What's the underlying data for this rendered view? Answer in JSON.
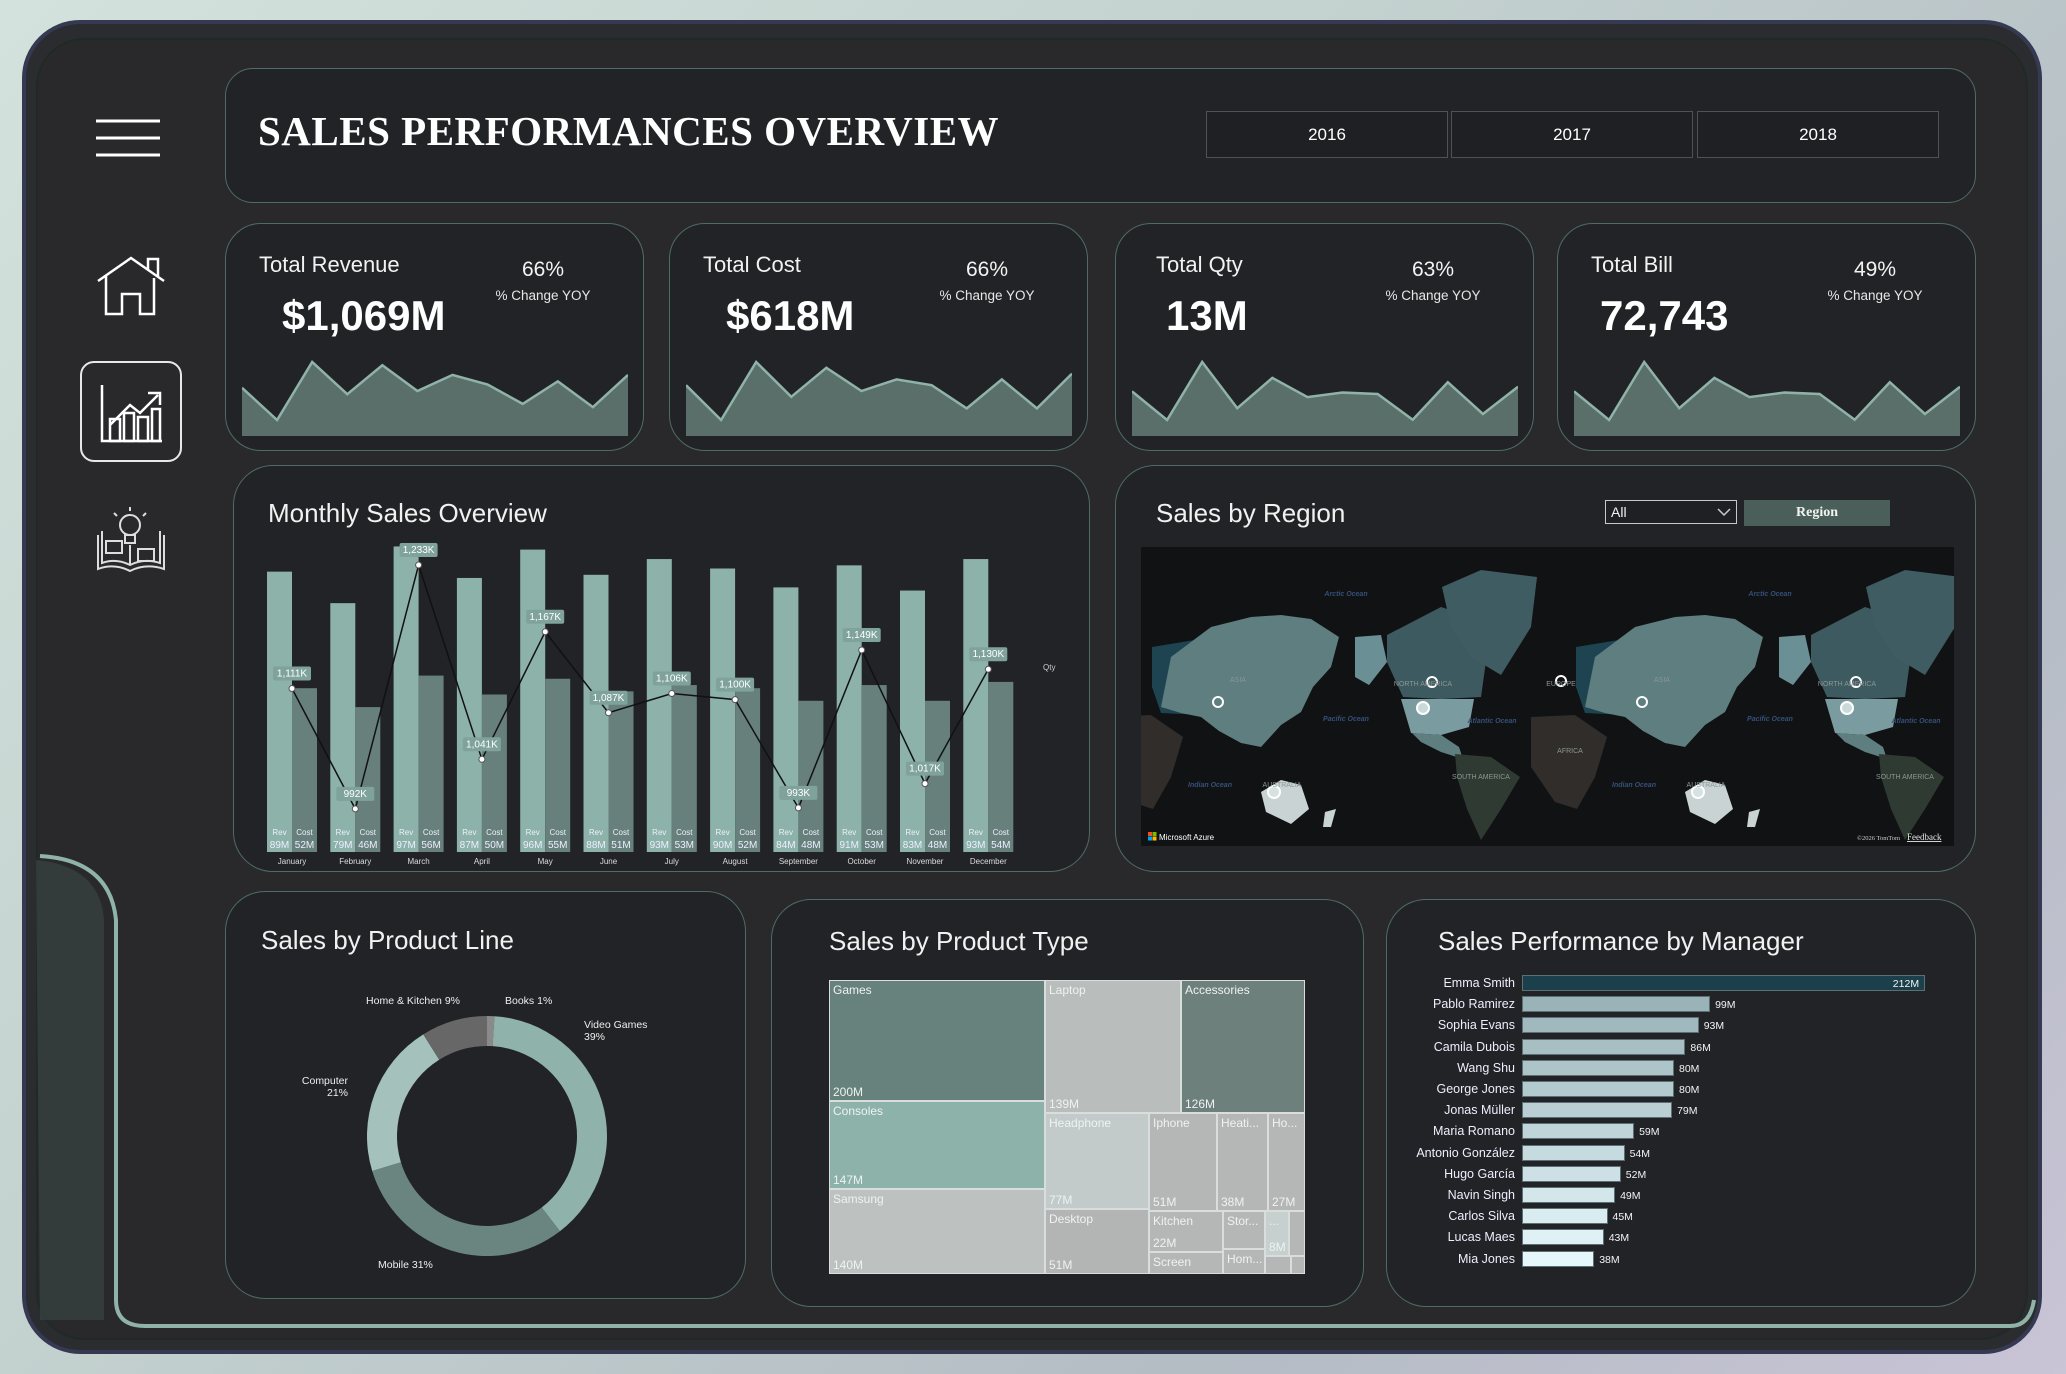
{
  "header": {
    "title": "SALES PERFORMANCES OVERVIEW",
    "years": [
      "2016",
      "2017",
      "2018"
    ]
  },
  "sidebar": {
    "icons": [
      "hamburger-menu-icon",
      "home-icon",
      "bar-chart-trend-icon",
      "idea-book-icon"
    ],
    "active": "bar-chart-trend-icon"
  },
  "kpis": [
    {
      "label": "Total Revenue",
      "value": "$1,069M",
      "change": "66%",
      "change_label": "% Change YOY"
    },
    {
      "label": "Total Cost",
      "value": "$618M",
      "change": "66%",
      "change_label": "% Change YOY"
    },
    {
      "label": "Total Qty",
      "value": "13M",
      "change": "63%",
      "change_label": "% Change YOY"
    },
    {
      "label": "Total Bill",
      "value": "72,743",
      "change": "49%",
      "change_label": "% Change YOY"
    }
  ],
  "monthly": {
    "title": "Monthly Sales Overview"
  },
  "region": {
    "title": "Sales by Region",
    "filter_value": "All",
    "button_label": "Region",
    "map": {
      "arctic": "Arctic Ocean",
      "pacific": "Pacific Ocean",
      "atlantic": "Atlantic Ocean",
      "indian": "Indian Ocean",
      "asia": "ASIA",
      "europe": "EUROPE",
      "north_america": "NORTH AMERICA",
      "south_america": "SOUTH AMERICA",
      "africa": "AFRICA",
      "australia": "AUSTRALIA",
      "attribution": "Microsoft Azure",
      "copyright": "©2026 TomTom",
      "feedback": "Feedback"
    }
  },
  "product_line": {
    "title": "Sales by Product Line"
  },
  "product_type": {
    "title": "Sales by Product Type"
  },
  "manager": {
    "title": "Sales Performance by Manager"
  },
  "colors": {
    "rev": "#8cb2aa",
    "cost": "#67807c",
    "spark_fill": "#5a6e6a",
    "spark_line": "#8fb3a8",
    "highlight": "#1b3f4b",
    "bar_dark": "#9ab3b8",
    "bar_light": "#e6f7fb"
  },
  "chart_data": [
    {
      "type": "bar+line",
      "categories": [
        "January",
        "February",
        "March",
        "April",
        "May",
        "June",
        "July",
        "August",
        "September",
        "October",
        "November",
        "December"
      ],
      "series": [
        {
          "name": "Rev",
          "unit": "M",
          "values": [
            89,
            79,
            97,
            87,
            96,
            88,
            93,
            90,
            84,
            91,
            83,
            93
          ]
        },
        {
          "name": "Cost",
          "unit": "M",
          "values": [
            52,
            46,
            56,
            50,
            55,
            51,
            53,
            52,
            48,
            53,
            48,
            54
          ]
        },
        {
          "name": "Qty",
          "unit": "K",
          "values": [
            1111,
            992,
            1233,
            1041,
            1167,
            1087,
            1106,
            1100,
            993,
            1149,
            1017,
            1130
          ]
        }
      ],
      "secondary_axis_label": "Qty"
    },
    {
      "type": "pie",
      "donut": true,
      "categories": [
        "Books",
        "Video Games",
        "Mobile",
        "Computer",
        "Home & Kitchen"
      ],
      "values": [
        1,
        39,
        31,
        21,
        9
      ],
      "labels": [
        "Books 1%",
        "Video Games",
        "Mobile 31%",
        "Computer",
        "Home & Kitchen 9%"
      ],
      "sublabels": [
        "",
        "39%",
        "",
        "21%",
        ""
      ],
      "colors": [
        "#8a8a8a",
        "#8fb3ab",
        "#6a8580",
        "#a4c1bc",
        "#676767"
      ]
    },
    {
      "type": "treemap",
      "items": [
        {
          "label": "Games",
          "value": "200M"
        },
        {
          "label": "Consoles",
          "value": "147M"
        },
        {
          "label": "Samsung",
          "value": "140M"
        },
        {
          "label": "Laptop",
          "value": "139M"
        },
        {
          "label": "Accessories",
          "value": "126M"
        },
        {
          "label": "Headphone",
          "value": "77M"
        },
        {
          "label": "Desktop",
          "value": "51M"
        },
        {
          "label": "Iphone",
          "value": "51M"
        },
        {
          "label": "Heati...",
          "value": "38M"
        },
        {
          "label": "Ho...",
          "value": "27M"
        },
        {
          "label": "Kitchen",
          "value": "22M"
        },
        {
          "label": "Screen",
          "value": ""
        },
        {
          "label": "Stor...",
          "value": ""
        },
        {
          "label": "Hom...",
          "value": ""
        },
        {
          "label": "...",
          "value": "8M"
        }
      ]
    },
    {
      "type": "bar",
      "orientation": "horizontal",
      "categories": [
        "Emma Smith",
        "Pablo Ramirez",
        "Sophia Evans",
        "Camila Dubois",
        "Wang Shu",
        "George Jones",
        "Jonas Müller",
        "Maria Romano",
        "Antonio González",
        "Hugo García",
        "Navin Singh",
        "Carlos Silva",
        "Lucas Maes",
        "Mia Jones"
      ],
      "values": [
        212,
        99,
        93,
        86,
        80,
        80,
        79,
        59,
        54,
        52,
        49,
        45,
        43,
        38
      ],
      "unit": "M"
    }
  ]
}
